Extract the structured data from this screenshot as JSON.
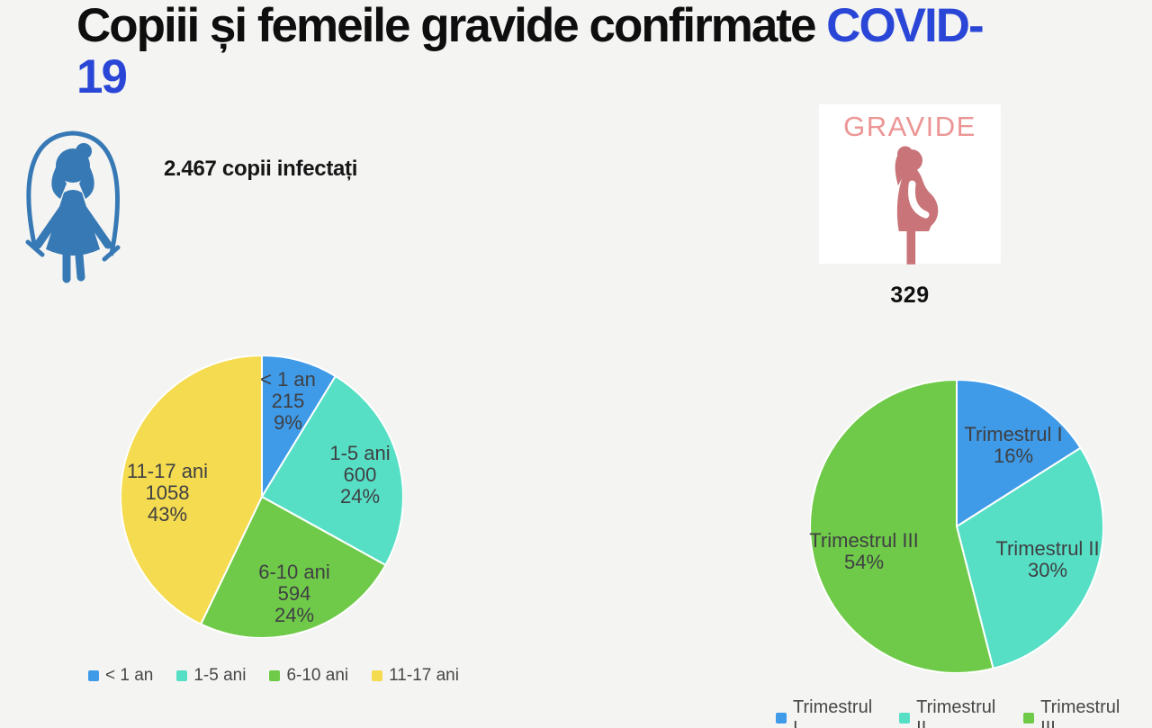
{
  "page": {
    "background": "#f4f4f3"
  },
  "title": {
    "black": "Copiii și femeile gravide confirmate ",
    "blue_line1": "COVID-",
    "blue_line2": "19",
    "blue_color": "#2a46d6"
  },
  "children_section": {
    "count_label": "2.467 copii infectați",
    "icon": "girl-jumping-rope-icon",
    "icon_color": "#3779b5"
  },
  "pregnant_section": {
    "box_label": "GRAVIDE",
    "box_label_color": "#ec9595",
    "count": "329",
    "icon": "pregnant-woman-icon",
    "icon_color": "#c97478"
  },
  "chart_data": [
    {
      "type": "pie",
      "name": "children-by-age",
      "categories": [
        "< 1 an",
        "1-5 ani",
        "6-10 ani",
        "11-17 ani"
      ],
      "values": [
        215,
        600,
        594,
        1058
      ],
      "percent_labels": [
        "9%",
        "24%",
        "24%",
        "43%"
      ],
      "colors": [
        "#3f9ae8",
        "#57dfc6",
        "#70ca49",
        "#f5db4f"
      ],
      "total_label": "2.467 copii infectați",
      "legend_position": "bottom",
      "label_style": "inside: category, value, percent"
    },
    {
      "type": "pie",
      "name": "pregnant-by-trimester",
      "categories": [
        "Trimestrul I",
        "Trimestrul II",
        "Trimestrul III"
      ],
      "percents": [
        16,
        30,
        54
      ],
      "percent_labels": [
        "16%",
        "30%",
        "54%"
      ],
      "colors": [
        "#3f9ae8",
        "#57dfc6",
        "#70ca49"
      ],
      "total_label": "329",
      "legend_position": "bottom",
      "label_style": "inside: category, percent"
    }
  ]
}
